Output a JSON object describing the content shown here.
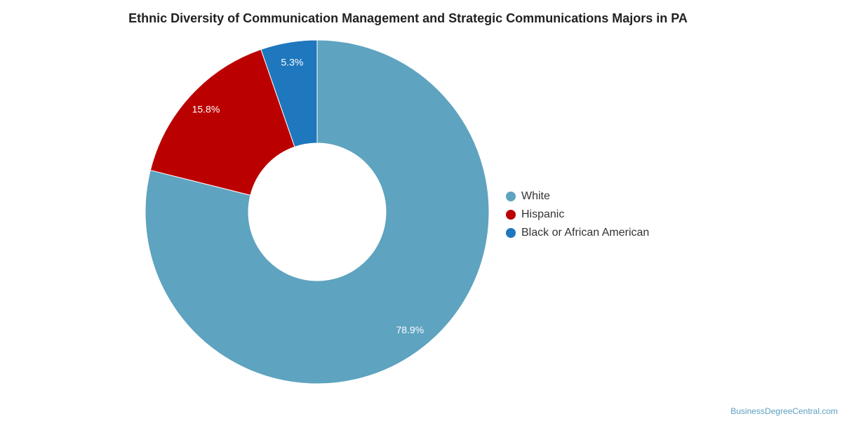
{
  "chart_data": {
    "type": "pie",
    "variant": "donut",
    "title": "Ethnic Diversity of Communication Management and Strategic Communications Majors in PA",
    "slices": [
      {
        "label": "White",
        "value": 78.9,
        "display": "78.9%",
        "color": "#5ea3c0"
      },
      {
        "label": "Hispanic",
        "value": 15.8,
        "display": "15.8%",
        "color": "#bb0000"
      },
      {
        "label": "Black or African American",
        "value": 5.3,
        "display": "5.3%",
        "color": "#1f77bd"
      }
    ],
    "legend_position": "right"
  },
  "watermark": "BusinessDegreeCentral.com"
}
